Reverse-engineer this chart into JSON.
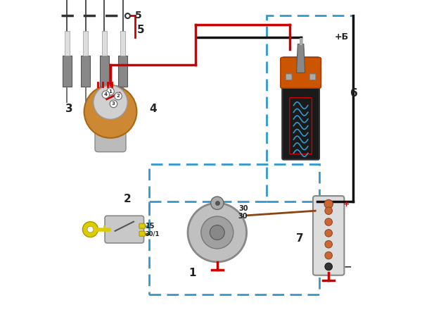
{
  "bg_color": "#f0f0f0",
  "title": "",
  "labels": {
    "1": [
      1,
      0.32,
      0.16
    ],
    "2": [
      2,
      0.14,
      0.57
    ],
    "3": [
      3,
      0.02,
      0.47
    ],
    "4": [
      4,
      0.28,
      0.47
    ],
    "5": [
      5,
      0.28,
      0.93
    ],
    "6": [
      6,
      0.92,
      0.6
    ],
    "7": [
      7,
      0.83,
      0.3
    ],
    "15": [
      15,
      0.28,
      0.65
    ],
    "30": [
      30,
      0.67,
      0.36
    ],
    "30/1": [
      "30/1",
      0.28,
      0.58
    ],
    "+B": [
      "+Б",
      0.92,
      0.9
    ]
  },
  "wire_colors": {
    "red": "#cc0000",
    "black": "#111111",
    "blue_dashed": "#3399cc",
    "brown": "#8B4513"
  }
}
